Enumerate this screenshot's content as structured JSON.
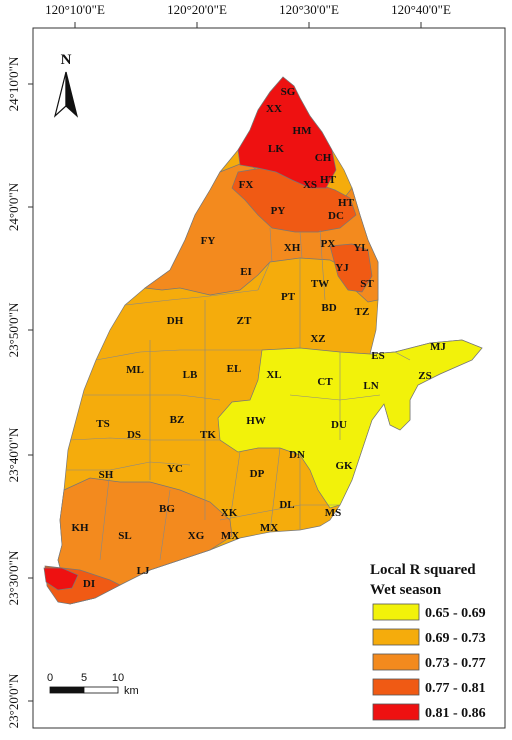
{
  "map": {
    "top_ticks": [
      "120°10'0\"E",
      "120°20'0\"E",
      "120°30'0\"E",
      "120°40'0\"E"
    ],
    "left_ticks": [
      "24°10'0\"N",
      "24°0'0\"N",
      "23°50'0\"N",
      "23°40'0\"N",
      "23°30'0\"N",
      "23°20'0\"N"
    ],
    "north_label": "N",
    "scale": {
      "labels": [
        "0",
        "5",
        "10"
      ],
      "unit": "km"
    }
  },
  "legend": {
    "title_line1": "Local R squared",
    "title_line2": "Wet season",
    "classes": [
      {
        "label": "0.65 - 0.69",
        "color": "#f2f20a"
      },
      {
        "label": "0.69 - 0.73",
        "color": "#f5ac0c"
      },
      {
        "label": "0.73 - 0.77",
        "color": "#f38a1e"
      },
      {
        "label": "0.77 - 0.81",
        "color": "#f05a14"
      },
      {
        "label": "0.81 - 0.86",
        "color": "#ee1111"
      }
    ]
  },
  "districts": [
    "SG",
    "XX",
    "HM",
    "LK",
    "CH",
    "HT",
    "FX",
    "XS",
    "HT",
    "PY",
    "DC",
    "FY",
    "XH",
    "PX",
    "YL",
    "EI",
    "YJ",
    "ST",
    "PT",
    "TW",
    "BD",
    "DH",
    "ZT",
    "TZ",
    "XZ",
    "ES",
    "MJ",
    "ML",
    "LB",
    "EL",
    "XL",
    "CT",
    "LN",
    "ZS",
    "TS",
    "DS",
    "BZ",
    "HW",
    "DU",
    "TK",
    "DN",
    "GK",
    "SH",
    "YC",
    "DP",
    "KH",
    "BG",
    "XK",
    "DL",
    "MS",
    "SL",
    "XG",
    "MX",
    "MX",
    "LJ",
    "DI"
  ]
}
